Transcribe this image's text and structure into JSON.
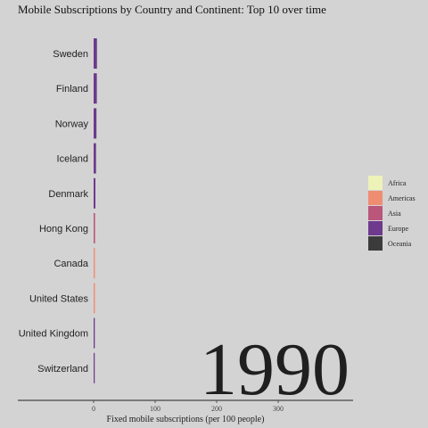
{
  "chart_data": {
    "type": "bar",
    "orientation": "horizontal",
    "title": "Mobile Subscriptions by Country and Continent: Top 10 over time",
    "xlabel": "Fixed mobile subscriptions (per 100 people)",
    "year": "1990",
    "categories": [
      "Sweden",
      "Finland",
      "Norway",
      "Iceland",
      "Denmark",
      "Hong Kong",
      "Canada",
      "United States",
      "United Kingdom",
      "Switzerland"
    ],
    "values": [
      5.4,
      5.2,
      4.6,
      3.9,
      2.9,
      2.3,
      2.1,
      2.1,
      1.9,
      1.8
    ],
    "continent": [
      "Europe",
      "Europe",
      "Europe",
      "Europe",
      "Europe",
      "Asia",
      "Americas",
      "Americas",
      "Europe",
      "Europe"
    ],
    "x_ticks": [
      0,
      100,
      200,
      300
    ],
    "xlim": [
      0,
      420
    ],
    "legend": {
      "position": "right",
      "entries": [
        {
          "name": "Africa",
          "color": "#edf2b9"
        },
        {
          "name": "Americas",
          "color": "#ef8d72"
        },
        {
          "name": "Asia",
          "color": "#b9567a"
        },
        {
          "name": "Europe",
          "color": "#6d3a8d"
        },
        {
          "name": "Oceania",
          "color": "#3b3b3b"
        }
      ]
    },
    "grid": false
  }
}
